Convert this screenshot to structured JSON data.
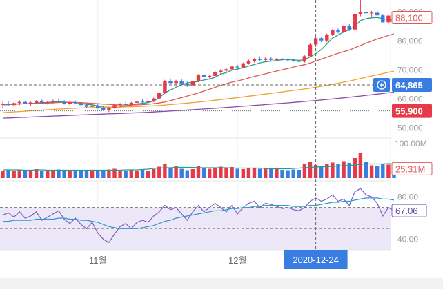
{
  "chart_data": [
    {
      "panel": "price",
      "type": "candlestick",
      "y_ticks": [
        "50,000",
        "60,000",
        "70,000",
        "80,000",
        "90,000"
      ],
      "ylim": [
        47000,
        93000
      ],
      "ohlc": [
        [
          58000,
          59000,
          56800,
          58400
        ],
        [
          58400,
          59200,
          57600,
          57900
        ],
        [
          57900,
          58900,
          57200,
          58600
        ],
        [
          58600,
          59600,
          57900,
          59000
        ],
        [
          59000,
          59400,
          58200,
          58300
        ],
        [
          58300,
          59100,
          57800,
          58800
        ],
        [
          58800,
          59600,
          58300,
          59200
        ],
        [
          59200,
          59800,
          58600,
          58700
        ],
        [
          58700,
          59400,
          58100,
          59000
        ],
        [
          59000,
          59800,
          58500,
          59400
        ],
        [
          59400,
          60300,
          58800,
          59000
        ],
        [
          59000,
          59600,
          58100,
          58400
        ],
        [
          58400,
          59200,
          57700,
          58900
        ],
        [
          58900,
          59500,
          58200,
          58500
        ],
        [
          58500,
          59100,
          57600,
          57900
        ],
        [
          57900,
          58600,
          57000,
          57300
        ],
        [
          57300,
          58200,
          56500,
          57800
        ],
        [
          57800,
          58300,
          56600,
          56900
        ],
        [
          56900,
          57600,
          55800,
          56200
        ],
        [
          56200,
          57200,
          55500,
          56900
        ],
        [
          56900,
          58300,
          56600,
          57900
        ],
        [
          57900,
          58600,
          57200,
          58300
        ],
        [
          58300,
          59100,
          57800,
          58000
        ],
        [
          58000,
          59000,
          57700,
          58700
        ],
        [
          58700,
          59300,
          58000,
          59100
        ],
        [
          59100,
          59900,
          58700,
          58900
        ],
        [
          58900,
          59400,
          58300,
          59200
        ],
        [
          59200,
          60500,
          58900,
          60200
        ],
        [
          60200,
          62400,
          60000,
          62100
        ],
        [
          62100,
          66600,
          61800,
          66300
        ],
        [
          66300,
          67100,
          65200,
          65500
        ],
        [
          65500,
          66600,
          64700,
          66300
        ],
        [
          66300,
          66900,
          64900,
          65200
        ],
        [
          65200,
          66000,
          64200,
          64700
        ],
        [
          64700,
          66500,
          64400,
          66200
        ],
        [
          66200,
          68600,
          65800,
          68300
        ],
        [
          68300,
          68900,
          67100,
          67600
        ],
        [
          67600,
          68400,
          67000,
          68000
        ],
        [
          68000,
          69700,
          67600,
          69400
        ],
        [
          69400,
          70300,
          68600,
          69800
        ],
        [
          69800,
          70600,
          69100,
          70300
        ],
        [
          70300,
          71500,
          69900,
          71200
        ],
        [
          71200,
          71800,
          70400,
          70900
        ],
        [
          70900,
          72600,
          70600,
          72300
        ],
        [
          72300,
          73600,
          71900,
          73100
        ],
        [
          73100,
          74100,
          72600,
          73800
        ],
        [
          73800,
          74700,
          73200,
          73500
        ],
        [
          73500,
          74400,
          73000,
          74000
        ],
        [
          74000,
          74500,
          73200,
          73500
        ],
        [
          73500,
          74200,
          73000,
          73700
        ],
        [
          73700,
          74200,
          73300,
          73600
        ],
        [
          73600,
          74000,
          73100,
          73400
        ],
        [
          73400,
          73800,
          72800,
          73100
        ],
        [
          73100,
          73600,
          72600,
          72900
        ],
        [
          72900,
          75100,
          72600,
          74800
        ],
        [
          74800,
          79200,
          74500,
          78800
        ],
        [
          78800,
          81300,
          78000,
          81000
        ],
        [
          81000,
          81600,
          79600,
          80200
        ],
        [
          80200,
          82600,
          79600,
          82200
        ],
        [
          82200,
          84100,
          81800,
          83700
        ],
        [
          83700,
          84400,
          82600,
          83000
        ],
        [
          83000,
          85500,
          82800,
          85200
        ],
        [
          85200,
          85900,
          83500,
          84000
        ],
        [
          84000,
          89800,
          83600,
          89300
        ],
        [
          89300,
          96800,
          88600,
          89900
        ],
        [
          89900,
          91200,
          88500,
          89600
        ],
        [
          89600,
          90400,
          88500,
          89800
        ],
        [
          89800,
          90700,
          88600,
          88900
        ],
        [
          88900,
          89200,
          86200,
          86500
        ],
        [
          86500,
          89100,
          85900,
          88800
        ],
        [
          88800,
          89700,
          87800,
          88100
        ]
      ],
      "moving_averages": [
        {
          "name": "MA5",
          "color": "#20a08c",
          "values": [
            58000,
            58133,
            58175,
            58320,
            58340,
            58440,
            58660,
            58760,
            58800,
            58930,
            59060,
            58940,
            58820,
            58800,
            58520,
            58120,
            58060,
            57610,
            57210,
            57180,
            57120,
            57260,
            57600,
            57940,
            58350,
            58540,
            58760,
            59320,
            60440,
            62090,
            63140,
            64090,
            64860,
            65600,
            65740,
            66100,
            66560,
            66900,
            67520,
            68600,
            69120,
            69980,
            70300,
            70860,
            71380,
            71910,
            72470,
            72830,
            73080,
            73300,
            73580,
            73720,
            73580,
            73340,
            73580,
            74550,
            75640,
            77110,
            79040,
            81050,
            82110,
            83160,
            83880,
            85220,
            87070,
            87760,
            88060,
            88180,
            87760,
            87420,
            87140
          ]
        },
        {
          "name": "MA20",
          "color": "#e05858",
          "values": [
            58000,
            58133,
            58175,
            58320,
            58340,
            58440,
            58526,
            58550,
            58600,
            58690,
            58800,
            58900,
            58860,
            58830,
            58740,
            58630,
            58510,
            58400,
            58260,
            58180,
            58030,
            57960,
            57940,
            57930,
            58000,
            58060,
            58210,
            58390,
            58620,
            58990,
            59460,
            59990,
            60500,
            61050,
            61560,
            62100,
            62750,
            63390,
            64050,
            64700,
            65270,
            65850,
            66260,
            66740,
            67280,
            67820,
            68230,
            68720,
            69190,
            69650,
            70120,
            70560,
            71040,
            71470,
            71870,
            72440,
            73120,
            73770,
            74470,
            75160,
            75770,
            76370,
            76920,
            77720,
            78500,
            79280,
            80010,
            80720,
            81320,
            81960,
            82520
          ]
        },
        {
          "name": "MA60",
          "color": "#f0a22a",
          "values": [
            55300,
            55430,
            55550,
            55680,
            55800,
            55930,
            56050,
            56170,
            56300,
            56420,
            56530,
            56640,
            56740,
            56830,
            56910,
            56980,
            57040,
            57090,
            57120,
            57150,
            57180,
            57220,
            57270,
            57330,
            57400,
            57480,
            57570,
            57670,
            57780,
            57930,
            58090,
            58260,
            58430,
            58600,
            58770,
            58950,
            59150,
            59360,
            59580,
            59810,
            60040,
            60280,
            60520,
            60750,
            60990,
            61240,
            61490,
            61740,
            61990,
            62240,
            62480,
            62720,
            62960,
            63200,
            63460,
            63760,
            64080,
            64410,
            64760,
            65120,
            65480,
            65850,
            66220,
            66640,
            67080,
            67520,
            67950,
            68380,
            68800,
            69230,
            69650
          ]
        },
        {
          "name": "MA120",
          "color": "#8a4aac",
          "values": [
            53400,
            53480,
            53560,
            53640,
            53720,
            53800,
            53880,
            53960,
            54040,
            54120,
            54200,
            54280,
            54360,
            54440,
            54520,
            54600,
            54680,
            54750,
            54820,
            54890,
            54960,
            55030,
            55100,
            55180,
            55260,
            55350,
            55440,
            55540,
            55640,
            55750,
            55860,
            55970,
            56080,
            56190,
            56310,
            56430,
            56560,
            56690,
            56820,
            56950,
            57080,
            57220,
            57360,
            57500,
            57640,
            57790,
            57940,
            58090,
            58240,
            58390,
            58540,
            58690,
            58840,
            58990,
            59150,
            59320,
            59490,
            59670,
            59850,
            60040,
            60230,
            60430,
            60630,
            60840,
            61050,
            61270,
            61490,
            61710,
            61940,
            62170,
            62400
          ]
        }
      ],
      "labels": {
        "last_price": "88,100",
        "cursor_price": "64,865",
        "ref_price": "55,900"
      },
      "cursor_price_value": 64865,
      "ref_price_value": 55900,
      "last_price_value": 88100,
      "colors": {
        "up": "#e8394a",
        "down": "#3a7de0",
        "last_price_border": "#e05858",
        "cursor_price_bg": "#3a7de0",
        "ref_price_bg": "#e8394a"
      }
    },
    {
      "panel": "volume",
      "type": "bar",
      "y_ticks": [
        "100.00M"
      ],
      "ylim": [
        0,
        100000000
      ],
      "values": [
        22,
        24,
        21,
        25,
        22,
        23,
        26,
        21,
        22,
        24,
        25,
        23,
        21,
        22,
        20,
        23,
        24,
        22,
        21,
        25,
        27,
        24,
        22,
        23,
        21,
        24,
        22,
        26,
        33,
        40,
        30,
        34,
        27,
        23,
        26,
        34,
        29,
        27,
        31,
        33,
        28,
        32,
        27,
        26,
        30,
        29,
        27,
        29,
        28,
        26,
        24,
        23,
        25,
        24,
        40,
        47,
        38,
        34,
        40,
        45,
        42,
        49,
        44,
        58,
        72,
        47,
        37,
        36,
        42,
        39,
        25.31
      ],
      "ma_line": {
        "name": "volume-ma",
        "color": "#20a08c",
        "values": [
          24,
          24,
          24,
          24,
          23,
          23,
          24,
          24,
          23,
          23,
          23,
          23,
          23,
          23,
          23,
          23,
          23,
          23,
          23,
          23,
          23,
          23,
          24,
          24,
          24,
          25,
          26,
          28,
          29,
          30,
          30,
          31,
          31,
          31,
          31,
          30,
          30,
          30,
          30,
          30,
          30,
          29,
          29,
          29,
          29,
          29,
          29,
          28,
          27,
          27,
          27,
          27,
          28,
          29,
          30,
          31,
          32,
          33,
          33,
          34,
          35,
          36,
          37,
          38,
          40,
          41,
          41,
          41,
          41,
          42,
          41
        ]
      },
      "labels": {
        "last_volume": "25.31M"
      }
    },
    {
      "panel": "rsi",
      "type": "line",
      "y_ticks": [
        "40.00",
        "80.00"
      ],
      "ylim": [
        30,
        90
      ],
      "overbought": 70,
      "oversold": 30,
      "series": [
        {
          "name": "rsi",
          "color": "#7a5cc0",
          "values": [
            63,
            65,
            61,
            66,
            60,
            62,
            66,
            58,
            61,
            64,
            67,
            59,
            55,
            60,
            54,
            50,
            56,
            46,
            40,
            37,
            45,
            52,
            55,
            50,
            56,
            58,
            56,
            62,
            66,
            72,
            68,
            70,
            64,
            58,
            66,
            72,
            66,
            70,
            74,
            70,
            66,
            72,
            64,
            70,
            74,
            76,
            70,
            74,
            73,
            71,
            69,
            70,
            68,
            67,
            70,
            76,
            79,
            76,
            78,
            82,
            76,
            78,
            72,
            85,
            88,
            82,
            80,
            74,
            62,
            70,
            67.06
          ]
        },
        {
          "name": "rsi-signal",
          "color": "#2a9ad0",
          "values": [
            57,
            57,
            58,
            58,
            58,
            58,
            59,
            59,
            59,
            59,
            60,
            60,
            59,
            59,
            58,
            58,
            57,
            56,
            54,
            52,
            51,
            50,
            50,
            50,
            50,
            51,
            52,
            53,
            55,
            57,
            58,
            60,
            61,
            62,
            63,
            64,
            65,
            66,
            67,
            67,
            68,
            69,
            69,
            70,
            70,
            71,
            71,
            72,
            72,
            72,
            72,
            72,
            71,
            71,
            71,
            72,
            72,
            73,
            74,
            75,
            75,
            76,
            76,
            77,
            78,
            79,
            79,
            79,
            78,
            78,
            77
          ]
        }
      ],
      "labels": {
        "last_rsi": "67.06"
      }
    },
    {
      "panel": "time-axis",
      "type": "axis",
      "x_tick_labels": [
        {
          "label": "11월",
          "index": 17
        },
        {
          "label": "12월",
          "index": 42
        }
      ],
      "cursor": {
        "index": 56,
        "label": "2020-12-24"
      }
    }
  ]
}
